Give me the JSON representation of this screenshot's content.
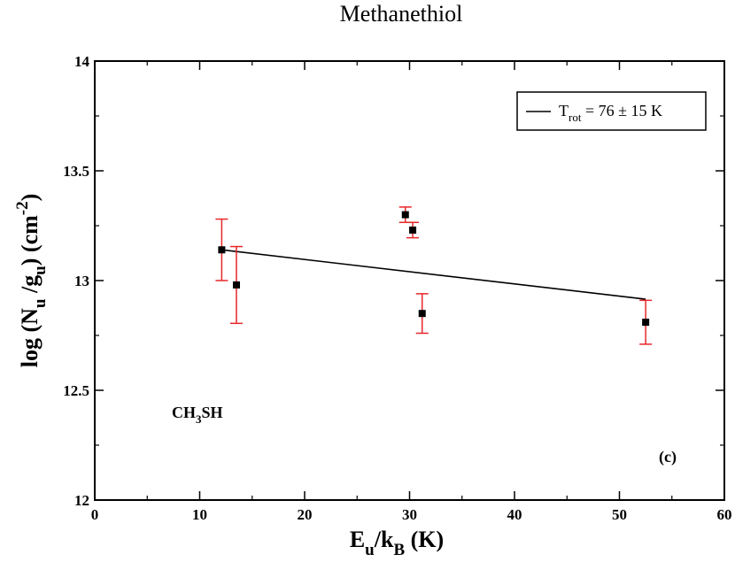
{
  "chart_data": {
    "type": "scatter",
    "title": "Methanethiol",
    "xlabel": {
      "main": "E",
      "sub1": "u",
      "mid": "/k",
      "sub2": "B",
      "tail": " (K)"
    },
    "ylabel": {
      "pre": "log (N",
      "sub1": "u",
      "mid": " /g",
      "sub2": "u",
      "mid2": ") (cm",
      "sup": "-2",
      "tail": ")"
    },
    "xlim": [
      0,
      60
    ],
    "ylim": [
      12,
      14
    ],
    "xticks": [
      "0",
      "10",
      "20",
      "30",
      "40",
      "50",
      "60"
    ],
    "yticks": [
      "12",
      "12.5",
      "13",
      "13.5",
      "14"
    ],
    "points": [
      {
        "x": 12.1,
        "y": 13.14,
        "err": 0.14
      },
      {
        "x": 13.5,
        "y": 12.98,
        "err": 0.175
      },
      {
        "x": 29.6,
        "y": 13.3,
        "err": 0.035
      },
      {
        "x": 30.3,
        "y": 13.23,
        "err": 0.035
      },
      {
        "x": 31.2,
        "y": 12.85,
        "err": 0.09
      },
      {
        "x": 52.5,
        "y": 12.81,
        "err": 0.1
      }
    ],
    "fit_line": {
      "x": [
        12.1,
        52.5
      ],
      "y": [
        13.14,
        12.915
      ]
    },
    "legend": {
      "label_main": "T",
      "label_sub": "rot",
      "label_rest": " = 76 ± 15 K",
      "position": "top-right"
    },
    "annotations": {
      "molecule_main": "CH",
      "molecule_sub": "3",
      "molecule_rest": "SH",
      "panel": "(c)"
    },
    "colors": {
      "points": "#000000",
      "errorbars": "#e8262a",
      "fit": "#000000"
    }
  }
}
